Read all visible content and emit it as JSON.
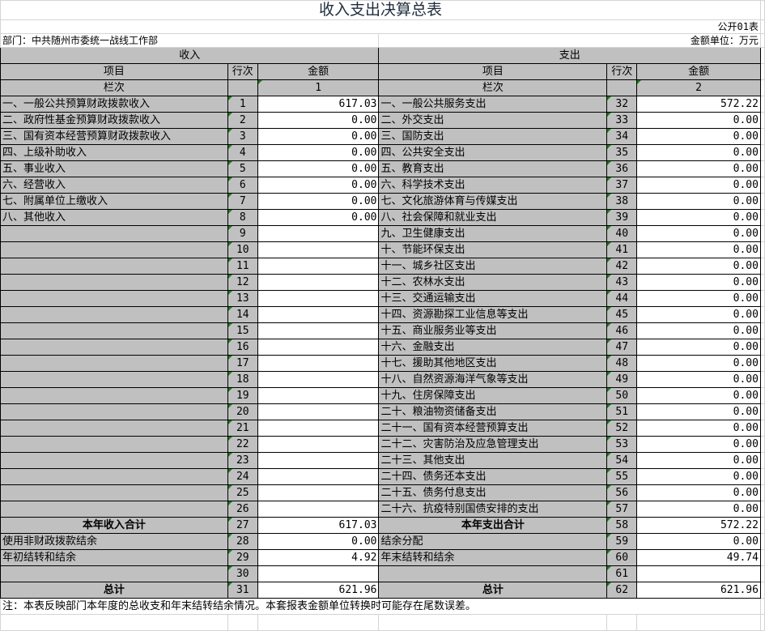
{
  "title": "收入支出决算总表",
  "form_no": "公开01表",
  "department": "部门：中共随州市委统一战线工作部",
  "unit": "金额单位：万元",
  "income": {
    "header": "收入",
    "col_item": "项目",
    "col_line": "行次",
    "col_amount": "金额",
    "col_index_label": "栏次",
    "col_index": "1"
  },
  "expense": {
    "header": "支出",
    "col_item": "项目",
    "col_line": "行次",
    "col_amount": "金额",
    "col_index_label": "栏次",
    "col_index": "2"
  },
  "rows": [
    {
      "il": "一、一般公共预算财政拨款收入",
      "in": "1",
      "ia": "617.03",
      "el": "一、一般公共服务支出",
      "en": "32",
      "ea": "572.22"
    },
    {
      "il": "二、政府性基金预算财政拨款收入",
      "in": "2",
      "ia": "0.00",
      "el": "二、外交支出",
      "en": "33",
      "ea": "0.00"
    },
    {
      "il": "三、国有资本经营预算财政拨款收入",
      "in": "3",
      "ia": "0.00",
      "el": "三、国防支出",
      "en": "34",
      "ea": "0.00"
    },
    {
      "il": "四、上级补助收入",
      "in": "4",
      "ia": "0.00",
      "el": "四、公共安全支出",
      "en": "35",
      "ea": "0.00"
    },
    {
      "il": "五、事业收入",
      "in": "5",
      "ia": "0.00",
      "el": "五、教育支出",
      "en": "36",
      "ea": "0.00"
    },
    {
      "il": "六、经营收入",
      "in": "6",
      "ia": "0.00",
      "el": "六、科学技术支出",
      "en": "37",
      "ea": "0.00"
    },
    {
      "il": "七、附属单位上缴收入",
      "in": "7",
      "ia": "0.00",
      "el": "七、文化旅游体育与传媒支出",
      "en": "38",
      "ea": "0.00"
    },
    {
      "il": "八、其他收入",
      "in": "8",
      "ia": "0.00",
      "el": "八、社会保障和就业支出",
      "en": "39",
      "ea": "0.00"
    },
    {
      "il": "",
      "in": "9",
      "ia": "",
      "el": "九、卫生健康支出",
      "en": "40",
      "ea": "0.00"
    },
    {
      "il": "",
      "in": "10",
      "ia": "",
      "el": "十、节能环保支出",
      "en": "41",
      "ea": "0.00"
    },
    {
      "il": "",
      "in": "11",
      "ia": "",
      "el": "十一、城乡社区支出",
      "en": "42",
      "ea": "0.00"
    },
    {
      "il": "",
      "in": "12",
      "ia": "",
      "el": "十二、农林水支出",
      "en": "43",
      "ea": "0.00"
    },
    {
      "il": "",
      "in": "13",
      "ia": "",
      "el": "十三、交通运输支出",
      "en": "44",
      "ea": "0.00"
    },
    {
      "il": "",
      "in": "14",
      "ia": "",
      "el": "十四、资源勘探工业信息等支出",
      "en": "45",
      "ea": "0.00"
    },
    {
      "il": "",
      "in": "15",
      "ia": "",
      "el": "十五、商业服务业等支出",
      "en": "46",
      "ea": "0.00"
    },
    {
      "il": "",
      "in": "16",
      "ia": "",
      "el": "十六、金融支出",
      "en": "47",
      "ea": "0.00"
    },
    {
      "il": "",
      "in": "17",
      "ia": "",
      "el": "十七、援助其他地区支出",
      "en": "48",
      "ea": "0.00"
    },
    {
      "il": "",
      "in": "18",
      "ia": "",
      "el": "十八、自然资源海洋气象等支出",
      "en": "49",
      "ea": "0.00"
    },
    {
      "il": "",
      "in": "19",
      "ia": "",
      "el": "十九、住房保障支出",
      "en": "50",
      "ea": "0.00"
    },
    {
      "il": "",
      "in": "20",
      "ia": "",
      "el": "二十、粮油物资储备支出",
      "en": "51",
      "ea": "0.00"
    },
    {
      "il": "",
      "in": "21",
      "ia": "",
      "el": "二十一、国有资本经营预算支出",
      "en": "52",
      "ea": "0.00"
    },
    {
      "il": "",
      "in": "22",
      "ia": "",
      "el": "二十二、灾害防治及应急管理支出",
      "en": "53",
      "ea": "0.00"
    },
    {
      "il": "",
      "in": "23",
      "ia": "",
      "el": "二十三、其他支出",
      "en": "54",
      "ea": "0.00"
    },
    {
      "il": "",
      "in": "24",
      "ia": "",
      "el": "二十四、债务还本支出",
      "en": "55",
      "ea": "0.00"
    },
    {
      "il": "",
      "in": "25",
      "ia": "",
      "el": "二十五、债务付息支出",
      "en": "56",
      "ea": "0.00"
    },
    {
      "il": "",
      "in": "26",
      "ia": "",
      "el": "二十六、抗疫特别国债安排的支出",
      "en": "57",
      "ea": "0.00"
    },
    {
      "il": "本年收入合计",
      "in": "27",
      "ia": "617.03",
      "el": "本年支出合计",
      "en": "58",
      "ea": "572.22",
      "bold": true
    },
    {
      "il": "使用非财政拨款结余",
      "in": "28",
      "ia": "0.00",
      "el": "结余分配",
      "en": "59",
      "ea": "0.00"
    },
    {
      "il": "年初结转和结余",
      "in": "29",
      "ia": "4.92",
      "el": "年末结转和结余",
      "en": "60",
      "ea": "49.74"
    },
    {
      "il": "",
      "in": "30",
      "ia": "",
      "el": "",
      "en": "61",
      "ea": ""
    },
    {
      "il": "总计",
      "in": "31",
      "ia": "621.96",
      "el": "总计",
      "en": "62",
      "ea": "621.96",
      "bold": true
    }
  ],
  "note": "注：本表反映部门本年度的总收支和年末结转结余情况。本套报表金额单位转换时可能存在尾数误差。"
}
